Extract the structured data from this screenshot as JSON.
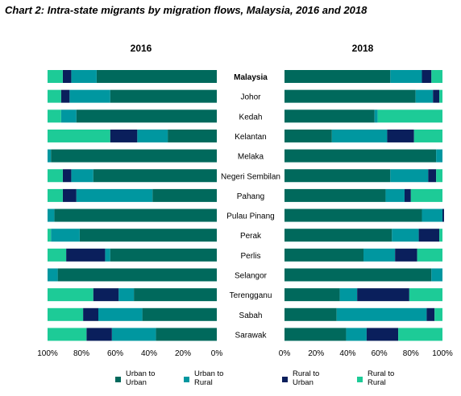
{
  "chart_data": {
    "type": "bar",
    "orientation": "horizontal-stacked-100",
    "title": "Chart 2:   Intra-state migrants by migration flows, Malaysia, 2016 and 2018",
    "categories": [
      "Malaysia",
      "Johor",
      "Kedah",
      "Kelantan",
      "Melaka",
      "Negeri Sembilan",
      "Pahang",
      "Pulau Pinang",
      "Perak",
      "Perlis",
      "Selangor",
      "Terengganu",
      "Sabah",
      "Sarawak"
    ],
    "legend_position": "bottom",
    "legend_entries": [
      "Urban to\nUrban",
      "Urban to\nRural",
      "Rural to\nUrban",
      "Rural to\nRural"
    ],
    "colors": [
      "#00695c",
      "#0097a0",
      "#0a1f5c",
      "#1dcb97"
    ],
    "panels": [
      {
        "name": "2016",
        "xlim": [
          0,
          100
        ],
        "x_direction": "reversed",
        "tick_labels": [
          "100%",
          "80%",
          "60%",
          "40%",
          "20%",
          "0%"
        ],
        "series": [
          {
            "name": "Urban to Urban",
            "values": [
              71,
              63,
              83,
              29,
              98,
              73,
              38,
              96,
              81,
              63,
              94,
              49,
              44,
              36
            ]
          },
          {
            "name": "Urban to Rural",
            "values": [
              15,
              24,
              9,
              18,
              2,
              13,
              45,
              4,
              17,
              3,
              6,
              9,
              26,
              26
            ]
          },
          {
            "name": "Rural to Urban",
            "values": [
              5,
              5,
              0,
              16,
              0,
              5,
              8,
              0,
              0,
              23,
              0,
              15,
              9,
              15
            ]
          },
          {
            "name": "Rural to Rural",
            "values": [
              9,
              8,
              8,
              37,
              0,
              9,
              9,
              0,
              2,
              11,
              0,
              27,
              21,
              23
            ]
          }
        ]
      },
      {
        "name": "2018",
        "xlim": [
          0,
          100
        ],
        "x_direction": "normal",
        "tick_labels": [
          "0%",
          "20%",
          "40%",
          "60%",
          "80%",
          "100%"
        ],
        "series": [
          {
            "name": "Urban to Urban",
            "values": [
              67,
              83,
              57,
              30,
              96,
              67,
              64,
              87,
              68,
              50,
              93,
              35,
              33,
              39
            ]
          },
          {
            "name": "Urban to Rural",
            "values": [
              20,
              11,
              2,
              35,
              4,
              24,
              12,
              13,
              17,
              20,
              7,
              11,
              57,
              13
            ]
          },
          {
            "name": "Rural to Urban",
            "values": [
              6,
              4,
              0,
              17,
              0,
              5,
              4,
              1,
              13,
              14,
              0,
              33,
              5,
              20
            ]
          },
          {
            "name": "Rural to Rural",
            "values": [
              7,
              2,
              41,
              18,
              0,
              4,
              20,
              0,
              2,
              16,
              0,
              21,
              5,
              28
            ]
          }
        ]
      }
    ]
  }
}
